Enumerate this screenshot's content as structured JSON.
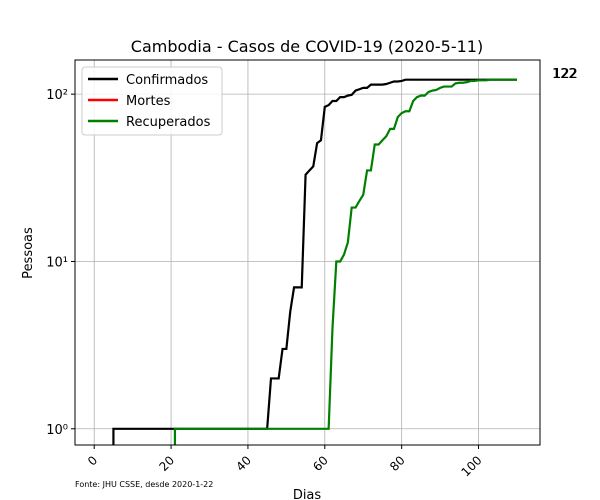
{
  "chart_data": {
    "type": "line",
    "title": "Cambodia - Casos de COVID-19 (2020-5-11)",
    "xlabel": "Dias",
    "ylabel": "Pessoas",
    "yscale": "log",
    "xlim": [
      -5,
      116
    ],
    "ylim": [
      0.8,
      160
    ],
    "xticks": [
      0,
      20,
      40,
      60,
      80,
      100
    ],
    "xtick_labels": [
      "0",
      "20",
      "40",
      "60",
      "80",
      "100"
    ],
    "yticks": [
      1,
      10,
      100
    ],
    "ytick_labels": [
      "10⁰",
      "10¹",
      "10²"
    ],
    "grid": true,
    "legend_position": "top-left",
    "source_note": "Fonte: JHU CSSE, desde 2020-1-22",
    "end_labels": [
      "122",
      "122"
    ],
    "series": [
      {
        "name": "Confirmados",
        "color": "#000000",
        "points": [
          [
            5,
            0.5
          ],
          [
            5,
            1
          ],
          [
            45,
            1
          ],
          [
            46,
            2
          ],
          [
            48,
            2
          ],
          [
            49,
            3
          ],
          [
            50,
            3
          ],
          [
            51,
            5
          ],
          [
            52,
            7
          ],
          [
            54,
            7
          ],
          [
            55,
            33
          ],
          [
            56,
            35
          ],
          [
            57,
            37
          ],
          [
            58,
            51
          ],
          [
            59,
            53
          ],
          [
            60,
            84
          ],
          [
            61,
            86
          ],
          [
            62,
            91
          ],
          [
            63,
            91
          ],
          [
            64,
            96
          ],
          [
            65,
            96
          ],
          [
            66,
            98
          ],
          [
            67,
            99
          ],
          [
            68,
            105
          ],
          [
            69,
            107
          ],
          [
            70,
            109
          ],
          [
            71,
            109
          ],
          [
            72,
            114
          ],
          [
            73,
            114
          ],
          [
            74,
            114
          ],
          [
            75,
            114
          ],
          [
            76,
            115
          ],
          [
            77,
            117
          ],
          [
            78,
            119
          ],
          [
            79,
            119
          ],
          [
            80,
            120
          ],
          [
            81,
            122
          ],
          [
            110,
            122
          ]
        ]
      },
      {
        "name": "Mortes",
        "color": "#ff0000",
        "points": []
      },
      {
        "name": "Recuperados",
        "color": "#008000",
        "points": [
          [
            21,
            0.5
          ],
          [
            21,
            1
          ],
          [
            61,
            1
          ],
          [
            62,
            4
          ],
          [
            63,
            10
          ],
          [
            64,
            10
          ],
          [
            65,
            11
          ],
          [
            66,
            13
          ],
          [
            67,
            21
          ],
          [
            68,
            21
          ],
          [
            69,
            23
          ],
          [
            70,
            25
          ],
          [
            71,
            35
          ],
          [
            72,
            35
          ],
          [
            73,
            50
          ],
          [
            74,
            50
          ],
          [
            75,
            53
          ],
          [
            76,
            56
          ],
          [
            77,
            62
          ],
          [
            78,
            62
          ],
          [
            79,
            73
          ],
          [
            80,
            77
          ],
          [
            81,
            79
          ],
          [
            82,
            79
          ],
          [
            83,
            91
          ],
          [
            84,
            96
          ],
          [
            85,
            98
          ],
          [
            86,
            98
          ],
          [
            87,
            103
          ],
          [
            88,
            105
          ],
          [
            89,
            106
          ],
          [
            90,
            109
          ],
          [
            91,
            111
          ],
          [
            92,
            111
          ],
          [
            93,
            111
          ],
          [
            94,
            116
          ],
          [
            95,
            117
          ],
          [
            96,
            117
          ],
          [
            97,
            118
          ],
          [
            98,
            120
          ],
          [
            99,
            120
          ],
          [
            100,
            121
          ],
          [
            101,
            121
          ],
          [
            102,
            121
          ],
          [
            103,
            122
          ],
          [
            110,
            122
          ]
        ]
      }
    ]
  }
}
